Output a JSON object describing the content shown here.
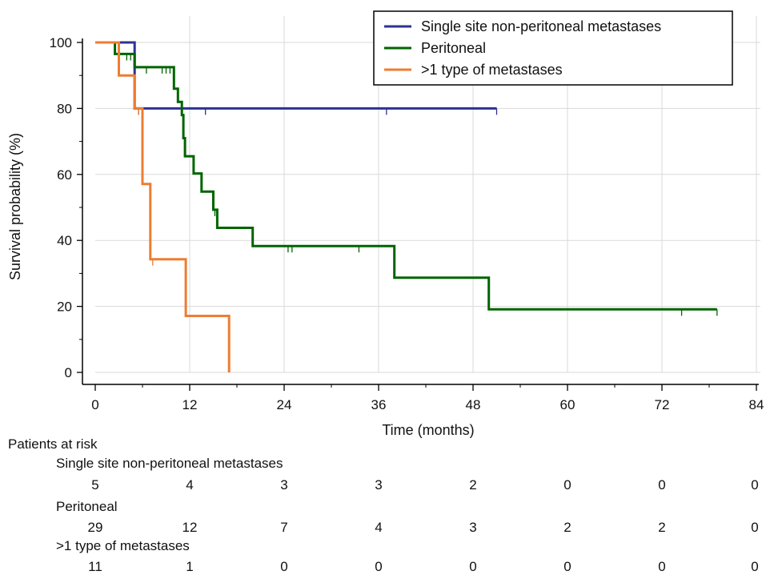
{
  "chart_data": {
    "type": "line",
    "subtype": "kaplan-meier",
    "xlabel": "Time (months)",
    "ylabel": "Survival probability (%)",
    "xlim": [
      0,
      84
    ],
    "ylim": [
      0,
      100
    ],
    "xticks": [
      "0",
      "12",
      "24",
      "36",
      "48",
      "60",
      "72",
      "84"
    ],
    "yticks": [
      "0",
      "20",
      "40",
      "60",
      "80",
      "100"
    ],
    "grid": true,
    "legend_position": "top-right",
    "series": [
      {
        "name": "Single site non-peritoneal metastases",
        "color": "#2e3192",
        "steps": [
          [
            0,
            100
          ],
          [
            5,
            100
          ],
          [
            5,
            80
          ],
          [
            51,
            80
          ]
        ],
        "censored": [
          [
            5.5,
            80
          ],
          [
            14,
            80
          ],
          [
            37,
            80
          ],
          [
            51,
            80
          ]
        ]
      },
      {
        "name": "Peritoneal",
        "color": "#006400",
        "steps": [
          [
            0,
            100
          ],
          [
            2.5,
            100
          ],
          [
            2.5,
            96.5
          ],
          [
            5,
            96.5
          ],
          [
            5,
            92.5
          ],
          [
            10,
            92.5
          ],
          [
            10,
            86
          ],
          [
            10.5,
            86
          ],
          [
            10.5,
            82
          ],
          [
            11,
            82
          ],
          [
            11,
            78
          ],
          [
            11.2,
            78
          ],
          [
            11.2,
            71
          ],
          [
            11.4,
            71
          ],
          [
            11.4,
            65.5
          ],
          [
            12.5,
            65.5
          ],
          [
            12.5,
            60.3
          ],
          [
            13.5,
            60.3
          ],
          [
            13.5,
            54.8
          ],
          [
            15,
            54.8
          ],
          [
            15,
            49.3
          ],
          [
            15.5,
            49.3
          ],
          [
            15.5,
            43.8
          ],
          [
            20,
            43.8
          ],
          [
            20,
            38.3
          ],
          [
            38,
            38.3
          ],
          [
            38,
            28.7
          ],
          [
            50,
            28.7
          ],
          [
            50,
            19.1
          ],
          [
            79,
            19.1
          ]
        ],
        "censored": [
          [
            4,
            96.5
          ],
          [
            4.5,
            96.5
          ],
          [
            6.5,
            92.5
          ],
          [
            8.5,
            92.5
          ],
          [
            9,
            92.5
          ],
          [
            9.5,
            92.5
          ],
          [
            15.2,
            49.3
          ],
          [
            24.5,
            38.3
          ],
          [
            25,
            38.3
          ],
          [
            33.5,
            38.3
          ],
          [
            74.5,
            19.1
          ],
          [
            79,
            19.1
          ]
        ]
      },
      {
        "name": ">1 type of metastases",
        "color": "#ed7d31",
        "steps": [
          [
            0,
            100
          ],
          [
            3,
            100
          ],
          [
            3,
            90
          ],
          [
            5,
            90
          ],
          [
            5,
            80
          ],
          [
            6,
            80
          ],
          [
            6,
            57.1
          ],
          [
            7,
            57.1
          ],
          [
            7,
            34.3
          ],
          [
            11.5,
            34.3
          ],
          [
            11.5,
            17.1
          ],
          [
            17,
            17.1
          ],
          [
            17,
            0
          ]
        ],
        "censored": [
          [
            5.5,
            80
          ],
          [
            7.3,
            34.3
          ]
        ]
      }
    ]
  },
  "risk_table": {
    "title": "Patients at risk",
    "groups": [
      {
        "label": "Single site non-peritoneal metastases",
        "values": [
          "5",
          "4",
          "3",
          "3",
          "2",
          "0",
          "0",
          "0"
        ]
      },
      {
        "label": "Peritoneal",
        "values": [
          "29",
          "12",
          "7",
          "4",
          "3",
          "2",
          "2",
          "0"
        ]
      },
      {
        "label": ">1 type of metastases",
        "values": [
          "11",
          "1",
          "0",
          "0",
          "0",
          "0",
          "0",
          "0"
        ]
      }
    ]
  }
}
